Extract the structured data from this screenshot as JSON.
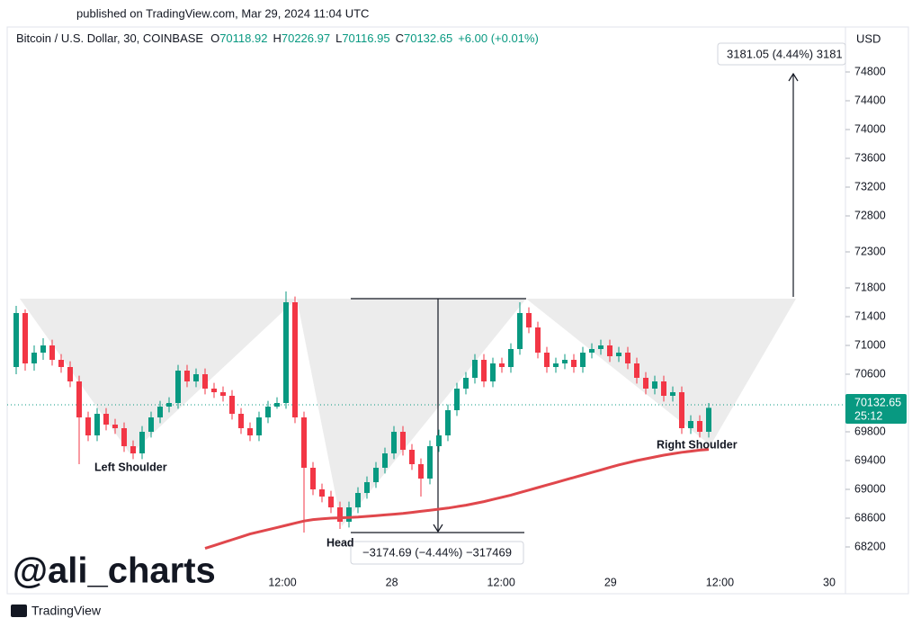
{
  "header": {
    "published": "published on TradingView.com, Mar 29, 2024 11:04 UTC"
  },
  "legend": {
    "symbol": "Bitcoin / U.S. Dollar, 30, COINBASE",
    "open_label": "O",
    "open": 70118.92,
    "high_label": "H",
    "high": 70226.97,
    "low_label": "L",
    "low": 70116.95,
    "close_label": "C",
    "close": 70132.65,
    "change": "+6.00 (+0.01%)"
  },
  "currency": "USD",
  "price_tag": {
    "price": 70132.65,
    "countdown": "25:12"
  },
  "annotations": {
    "target": "3181.05 (4.44%) 3181",
    "depth": "−3174.69 (−4.44%) −317469",
    "left_shoulder": "Left Shoulder",
    "head": "Head",
    "right_shoulder": "Right Shoulder",
    "watermark": "@ali_charts"
  },
  "footer": {
    "brand": "TradingView"
  },
  "chart_data": {
    "type": "candlestick",
    "up_color": "#089981",
    "down_color": "#f23645",
    "x_labels": [
      "12:00",
      "28",
      "12:00",
      "29",
      "12:00",
      "30"
    ],
    "ylim": [
      67550,
      75425
    ],
    "yticks": [
      68200,
      68600,
      69000,
      69400,
      69800,
      70600,
      71000,
      71400,
      71800,
      72300,
      72800,
      73200,
      73600,
      74000,
      74400,
      74800
    ],
    "open": [
      70700,
      71450,
      70750,
      70900,
      71000,
      70800,
      70700,
      70500,
      70000,
      69750,
      70050,
      69900,
      69850,
      69600,
      69500,
      69800,
      70000,
      70150,
      70200,
      70650,
      70500,
      70600,
      70400,
      70350,
      70300,
      70050,
      69850,
      69750,
      70000,
      70150,
      70200,
      71600,
      70000,
      69300,
      69000,
      68900,
      68750,
      68550,
      68750,
      68950,
      69100,
      69300,
      69500,
      69800,
      69550,
      69350,
      69150,
      69600,
      69750,
      70100,
      70400,
      70550,
      70800,
      70500,
      70750,
      70700,
      70950,
      71450,
      71250,
      70900,
      70700,
      70750,
      70800,
      70700,
      70900,
      70950,
      71000,
      70850,
      70900,
      70750,
      70550,
      70400,
      70500,
      70300,
      70350,
      69850,
      69950,
      69800
    ],
    "high": [
      71550,
      71500,
      71000,
      71100,
      71080,
      70880,
      70780,
      70580,
      70080,
      70130,
      70130,
      69980,
      69930,
      69680,
      69880,
      70080,
      70230,
      70280,
      70730,
      70730,
      70680,
      70680,
      70480,
      70430,
      70380,
      70130,
      69930,
      70080,
      70230,
      70280,
      71750,
      71680,
      70080,
      69380,
      69080,
      68980,
      68830,
      68830,
      69030,
      69180,
      69380,
      69580,
      69880,
      69880,
      69630,
      69430,
      69680,
      69830,
      70180,
      70480,
      70630,
      70880,
      70880,
      70830,
      70830,
      71030,
      71600,
      71530,
      71330,
      70980,
      70830,
      70880,
      70880,
      70980,
      71030,
      71080,
      71080,
      70980,
      70980,
      70830,
      70630,
      70580,
      70580,
      70430,
      70430,
      70030,
      70030,
      70200
    ],
    "low": [
      70600,
      70650,
      70650,
      70800,
      70720,
      70620,
      70420,
      69350,
      69670,
      69670,
      69820,
      69770,
      69520,
      69420,
      69420,
      69720,
      69920,
      70070,
      70120,
      70420,
      70420,
      70320,
      70270,
      70220,
      69970,
      69770,
      69670,
      69670,
      69920,
      70120,
      70120,
      69920,
      68400,
      68920,
      68820,
      68670,
      68450,
      68470,
      68670,
      68870,
      69020,
      69220,
      69420,
      69470,
      69270,
      68900,
      69070,
      69520,
      69670,
      70020,
      70320,
      70470,
      70420,
      70420,
      70620,
      70620,
      70870,
      71170,
      70820,
      70620,
      70620,
      70670,
      70620,
      70620,
      70820,
      70870,
      70770,
      70770,
      70670,
      70470,
      70320,
      70320,
      70220,
      70220,
      69770,
      69770,
      69720,
      69720
    ],
    "close": [
      71450,
      70750,
      70900,
      71000,
      70800,
      70700,
      70500,
      70000,
      69750,
      70050,
      69900,
      69850,
      69600,
      69500,
      69800,
      70000,
      70150,
      70200,
      70650,
      70500,
      70600,
      70400,
      70350,
      70300,
      70050,
      69850,
      69750,
      70000,
      70150,
      70200,
      71600,
      70000,
      69300,
      69000,
      68900,
      68750,
      68550,
      68750,
      68950,
      69100,
      69300,
      69500,
      69800,
      69550,
      69350,
      69150,
      69600,
      69750,
      70100,
      70400,
      70550,
      70800,
      70500,
      70750,
      70700,
      70950,
      71450,
      71250,
      70900,
      70700,
      70750,
      70800,
      70700,
      70900,
      70950,
      71000,
      70850,
      70900,
      70750,
      70550,
      70400,
      70500,
      70300,
      70350,
      69850,
      69950,
      69800,
      70133
    ],
    "ma": {
      "color": "#e0474c",
      "values": [
        null,
        null,
        null,
        null,
        null,
        null,
        null,
        null,
        null,
        null,
        null,
        null,
        null,
        null,
        null,
        null,
        null,
        null,
        null,
        null,
        null,
        68180,
        68220,
        68260,
        68300,
        68340,
        68380,
        68410,
        68440,
        68470,
        68500,
        68530,
        68560,
        68580,
        68590,
        68600,
        68605,
        68610,
        68615,
        68625,
        68635,
        68645,
        68655,
        68665,
        68680,
        68695,
        68710,
        68725,
        68740,
        68760,
        68780,
        68805,
        68830,
        68860,
        68890,
        68920,
        68955,
        68990,
        69025,
        69060,
        69095,
        69130,
        69165,
        69200,
        69235,
        69270,
        69305,
        69340,
        69370,
        69400,
        69425,
        69450,
        69475,
        69495,
        69515,
        69530,
        69545,
        69555
      ]
    }
  }
}
